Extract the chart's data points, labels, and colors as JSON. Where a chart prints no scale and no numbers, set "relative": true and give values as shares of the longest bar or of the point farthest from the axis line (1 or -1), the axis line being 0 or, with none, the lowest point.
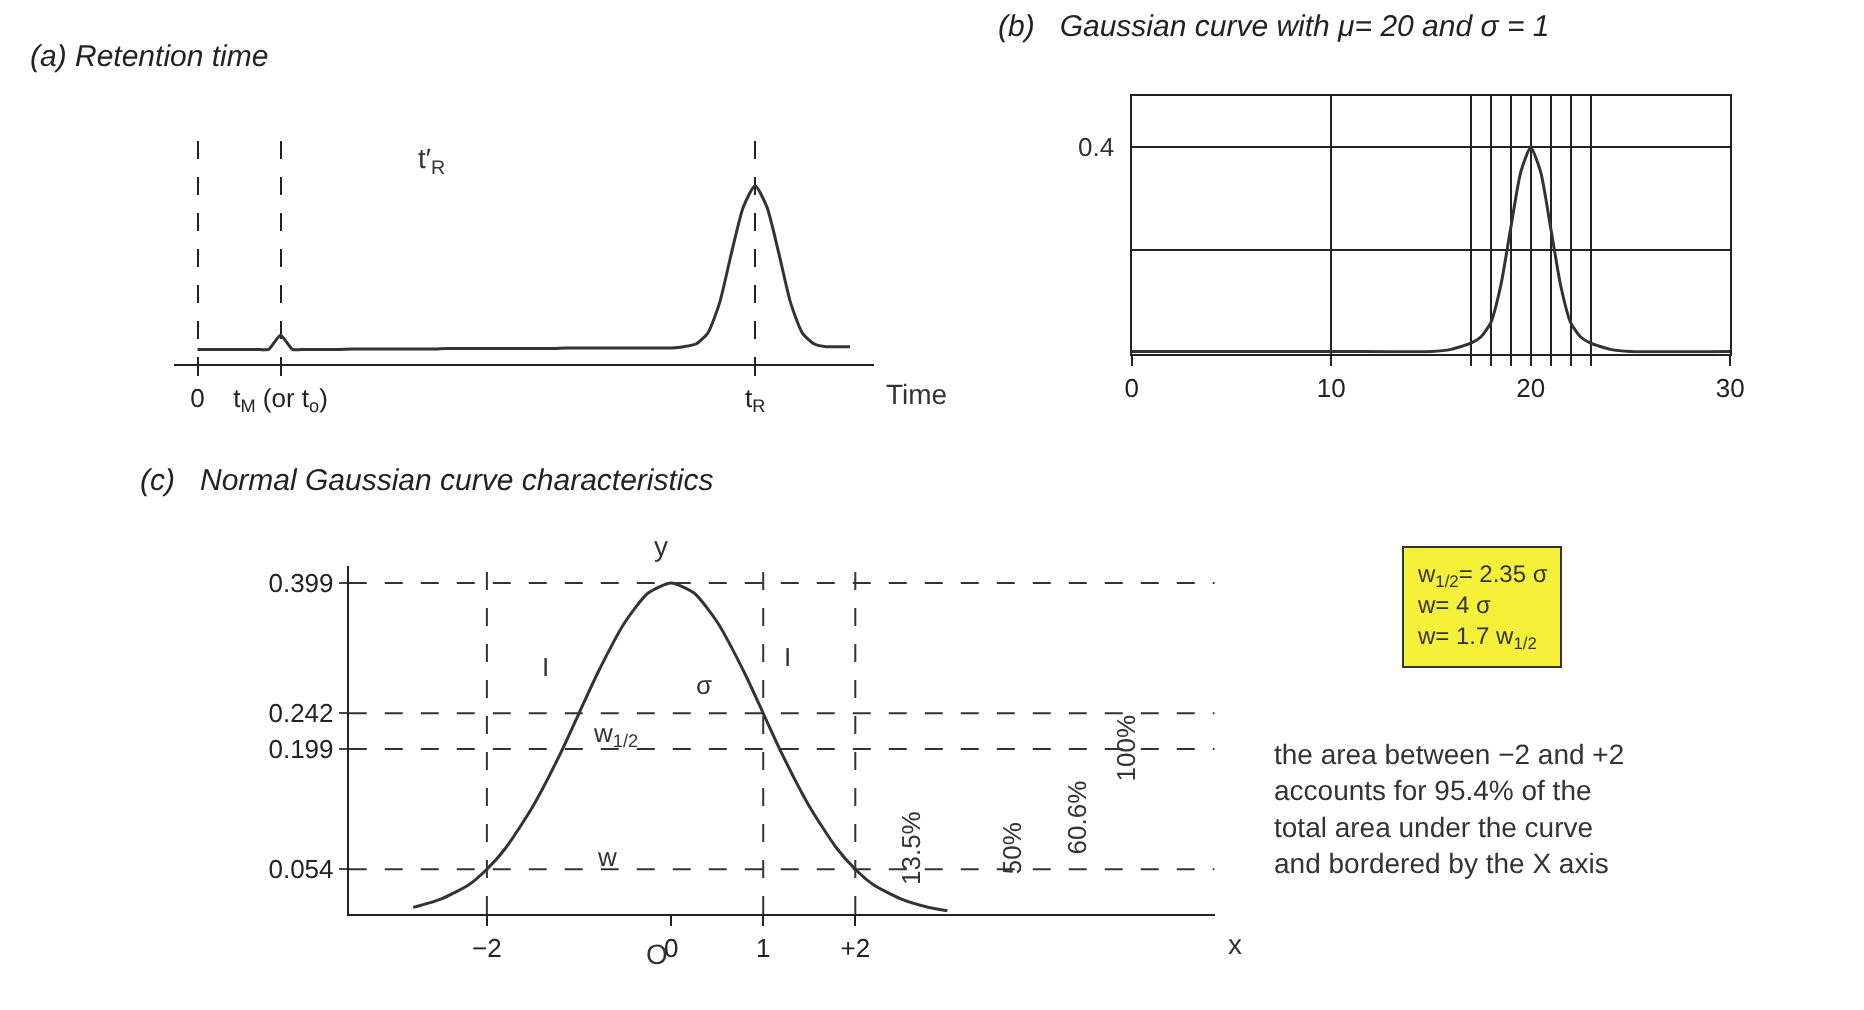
{
  "chart_data": [
    {
      "type": "line",
      "title": "(a) Retention time",
      "xlabel": "Time",
      "relative": true,
      "color": "#333333",
      "categories": [
        "0",
        null,
        null,
        null,
        null,
        null,
        null,
        "t$_{M}$ (or t$_{o}$)",
        null,
        null,
        null,
        null,
        null,
        null,
        null,
        null,
        null,
        null,
        null,
        null,
        null,
        null,
        null,
        null,
        null,
        null,
        null,
        null,
        null,
        null,
        null,
        null,
        null,
        null,
        null,
        null,
        null,
        null,
        null,
        null,
        null,
        null,
        null,
        null,
        null,
        null,
        null,
        "t$_{R}$",
        null,
        null,
        null,
        null,
        null,
        null,
        null,
        null
      ],
      "values": [
        0.08,
        0.08,
        0.08,
        0.08,
        0.08,
        0.08,
        0.08,
        0.16,
        0.08,
        0.08,
        0.08,
        0.08,
        0.08,
        0.082,
        0.082,
        0.082,
        0.082,
        0.082,
        0.082,
        0.082,
        0.082,
        0.085,
        0.085,
        0.085,
        0.085,
        0.085,
        0.085,
        0.085,
        0.085,
        0.085,
        0.085,
        0.088,
        0.088,
        0.088,
        0.088,
        0.088,
        0.088,
        0.088,
        0.088,
        0.088,
        0.088,
        0.095,
        0.11,
        0.17,
        0.34,
        0.62,
        0.88,
        1,
        0.88,
        0.62,
        0.34,
        0.17,
        0.11,
        0.095,
        0.095,
        0.095
      ],
      "annotations": [
        "t′$_{R}$"
      ],
      "grid": "x"
    },
    {
      "type": "line",
      "title": "(b)   Gaussian curve with μ= 20 and σ = 1",
      "color": "#333333",
      "relative": true,
      "x": [
        0,
        10,
        15,
        16,
        17,
        17.5,
        18,
        18.5,
        19,
        19.5,
        20,
        20.5,
        21,
        21.5,
        22,
        22.5,
        23,
        24,
        25,
        30
      ],
      "values": [
        0.01,
        0.01,
        0.01,
        0.02,
        0.05,
        0.08,
        0.15,
        0.33,
        0.61,
        0.88,
        1,
        0.88,
        0.61,
        0.33,
        0.15,
        0.08,
        0.05,
        0.02,
        0.01,
        0.01
      ],
      "xlim": [
        0,
        30
      ],
      "xticks": [
        0,
        10,
        {
          "value": 17,
          "label": null
        },
        {
          "value": 18,
          "label": null
        },
        {
          "value": 19,
          "label": null
        },
        20,
        {
          "value": 21,
          "label": null
        },
        {
          "value": 22,
          "label": null
        },
        {
          "value": 23,
          "label": null
        },
        30
      ],
      "annotations": [
        "0.4"
      ],
      "grid": true
    },
    {
      "type": "line",
      "title": "(c)   Normal Gaussian curve characteristics",
      "xlabel": "x",
      "ylabel": "y",
      "color": "#333333",
      "x": [
        -2.8,
        -2.5,
        -2.2,
        -2,
        -1.8,
        -1.5,
        -1.2,
        -1,
        -0.8,
        -0.5,
        -0.25,
        0,
        0.25,
        0.5,
        0.8,
        1,
        1.2,
        1.5,
        1.8,
        2,
        2.2,
        2.5,
        2.8,
        3.0
      ],
      "values": [
        0.008,
        0.018,
        0.035,
        0.054,
        0.079,
        0.13,
        0.194,
        0.242,
        0.29,
        0.352,
        0.387,
        0.399,
        0.387,
        0.352,
        0.29,
        0.242,
        0.194,
        0.13,
        0.079,
        0.054,
        0.035,
        0.018,
        0.008,
        0.004
      ],
      "xlim": [
        -3.5,
        5.9
      ],
      "xticks": [
        {
          "value": -2,
          "label": "−2"
        },
        0,
        1,
        {
          "value": 2,
          "label": "+2"
        }
      ],
      "ylim": [
        0,
        0.42
      ],
      "yticks": [
        0.054,
        0.199,
        0.242,
        0.399
      ],
      "ref_lines": [
        {
          "axis": "y",
          "value": 0.399,
          "line_style": "dashed"
        },
        {
          "axis": "y",
          "value": 0.242,
          "line_style": "dashed"
        },
        {
          "axis": "y",
          "value": 0.199,
          "line_style": "dashed"
        },
        {
          "axis": "y",
          "value": 0.054,
          "line_style": "dashed"
        },
        {
          "axis": "x",
          "value": -2,
          "line_style": "dashed"
        },
        {
          "axis": "x",
          "value": 1,
          "line_style": "dashed"
        },
        {
          "axis": "x",
          "value": 2,
          "line_style": "dashed"
        }
      ],
      "annotations": [
        "I",
        "I",
        "σ",
        "w$_{1/2}$",
        "w",
        "13.5%",
        "50%",
        "60.6%",
        "100%",
        "O",
        "w$_{1/2}$= 2.35 σ\nw= 4 σ\nw= 1.7 w$_{1/2}$",
        "the area between −2 and +2\naccounts for 95.4% of the\ntotal area under the curve\nand bordered by the X axis"
      ],
      "grid": false
    }
  ]
}
